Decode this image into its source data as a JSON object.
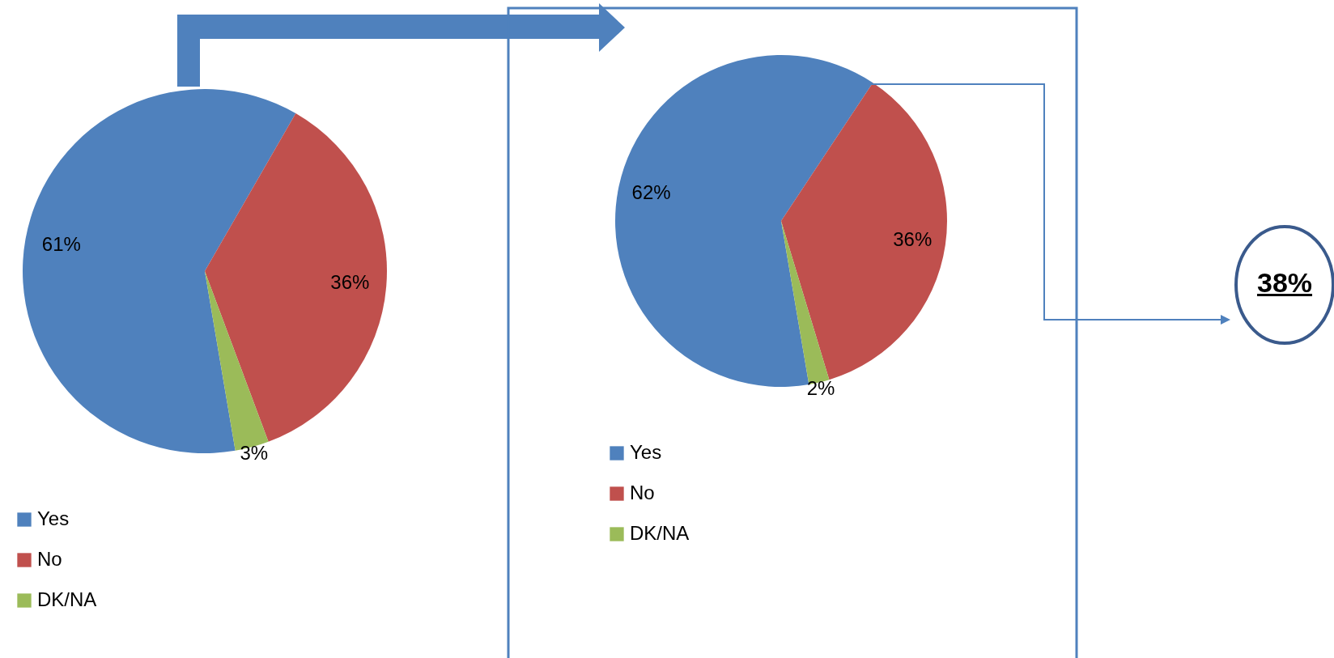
{
  "chart_data": [
    {
      "type": "pie",
      "categories": [
        "Yes",
        "No",
        "DK/NA"
      ],
      "values": [
        61,
        36,
        3
      ],
      "colors": [
        "#4f81bd",
        "#c0504d",
        "#9bbb59"
      ],
      "value_labels": [
        "61%",
        "36%",
        "3%"
      ],
      "legend": "bottom"
    },
    {
      "type": "pie",
      "categories": [
        "Yes",
        "No",
        "DK/NA"
      ],
      "values": [
        62,
        36,
        2
      ],
      "colors": [
        "#4f81bd",
        "#c0504d",
        "#9bbb59"
      ],
      "value_labels": [
        "62%",
        "36%",
        "2%"
      ],
      "legend": "bottom",
      "annotations": [
        "38%"
      ]
    }
  ]
}
